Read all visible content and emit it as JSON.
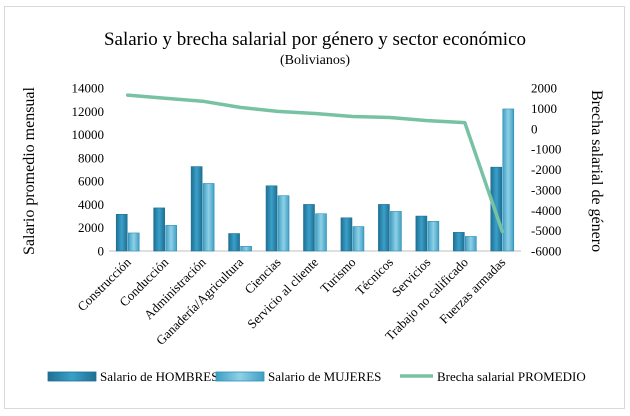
{
  "chart_data": {
    "type": "bar",
    "title": "Salario y brecha salarial por género y sector económico",
    "subtitle": "(Bolivianos)",
    "ylabel": "Salario promedio mensual",
    "y2label": "Brecha salarial de género",
    "ylim": [
      0,
      14000
    ],
    "y2lim": [
      -6000,
      2000
    ],
    "yticks": [
      0,
      2000,
      4000,
      6000,
      8000,
      10000,
      12000,
      14000
    ],
    "y2ticks": [
      -6000,
      -5000,
      -4000,
      -3000,
      -2000,
      -1000,
      0,
      1000,
      2000
    ],
    "grid": false,
    "legend_position": "bottom",
    "categories": [
      "Construcción",
      "Conducción",
      "Administración",
      "Ganadería/Agricultura",
      "Ciencias",
      "Servicio al cliente",
      "Turismo",
      "Técnicos",
      "Servicios",
      "Trabajo no calificado",
      "Fuerzas armadas"
    ],
    "series": [
      {
        "name": "Salario de HOMBRES",
        "type": "bar",
        "axis": "left",
        "color": "#2e8fb8",
        "values": [
          3150,
          3700,
          7250,
          1500,
          5600,
          4000,
          2850,
          4000,
          3000,
          1600,
          7200
        ]
      },
      {
        "name": "Salario de MUJERES",
        "type": "bar",
        "axis": "left",
        "color": "#55b3d3",
        "values": [
          1550,
          2200,
          5800,
          400,
          4750,
          3200,
          2100,
          3400,
          2550,
          1250,
          12200
        ]
      },
      {
        "name": "Brecha salarial PROMEDIO",
        "type": "line",
        "axis": "right",
        "color": "#78c2a4",
        "values": [
          1650,
          1500,
          1350,
          1050,
          850,
          750,
          600,
          550,
          400,
          300,
          -5050
        ]
      }
    ]
  }
}
